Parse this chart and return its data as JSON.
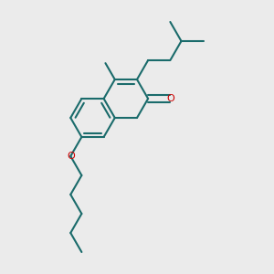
{
  "background_color": "#ebebeb",
  "bond_color": "#1a6b6b",
  "heteroatom_color": "#cc0000",
  "lw": 1.5,
  "figsize": [
    3.0,
    3.0
  ],
  "dpi": 100
}
